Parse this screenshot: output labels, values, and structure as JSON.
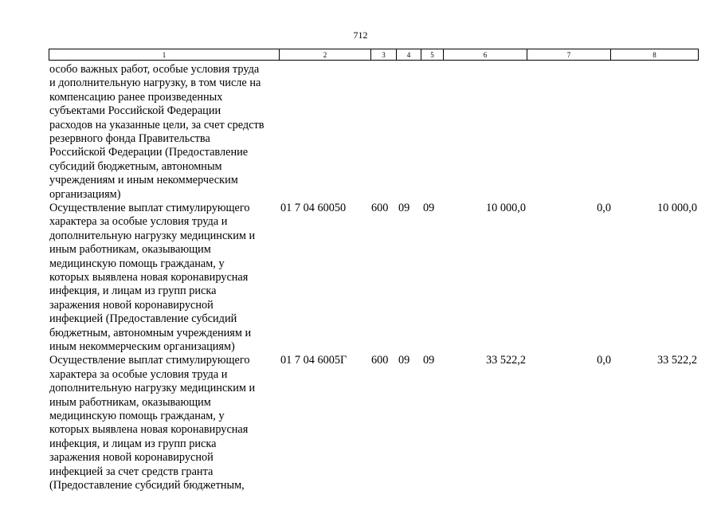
{
  "page_number": "712",
  "table": {
    "header": [
      "1",
      "2",
      "3",
      "4",
      "5",
      "6",
      "7",
      "8"
    ],
    "rows": [
      {
        "description": [
          "особо важных работ, особые условия труда",
          "и дополнительную нагрузку, в том числе на",
          "компенсацию ранее произведенных",
          "субъектами Российской Федерации",
          "расходов на указанные цели, за счет средств",
          "резервного фонда Правительства",
          "Российской Федерации (Предоставление",
          "субсидий бюджетным, автономным",
          "учреждениям и иным некоммерческим",
          "организациям)"
        ],
        "values": []
      },
      {
        "description": [
          "Осуществление выплат стимулирующего",
          "характера за особые условия труда и",
          "дополнительную нагрузку медицинским и",
          "иным работникам, оказывающим",
          "медицинскую помощь гражданам, у",
          "которых выявлена новая коронавирусная",
          "инфекция, и лицам из групп риска",
          "заражения новой коронавирусной",
          "инфекцией (Предоставление субсидий",
          "бюджетным, автономным учреждениям и",
          "иным некоммерческим организациям)"
        ],
        "values": [
          "01 7 04 60050",
          "600",
          "09",
          "09",
          "10 000,0",
          "0,0",
          "10 000,0"
        ]
      },
      {
        "description": [
          "Осуществление выплат стимулирующего",
          "характера за особые условия труда и",
          "дополнительную нагрузку медицинским и",
          "иным работникам, оказывающим",
          "медицинскую помощь гражданам, у",
          "которых выявлена новая коронавирусная",
          "инфекция, и лицам из групп риска",
          "заражения новой коронавирусной",
          "инфекцией за счет средств гранта",
          "(Предоставление субсидий бюджетным,"
        ],
        "values": [
          "01 7 04 6005Г",
          "600",
          "09",
          "09",
          "33 522,2",
          "0,0",
          "33 522,2"
        ]
      }
    ]
  }
}
